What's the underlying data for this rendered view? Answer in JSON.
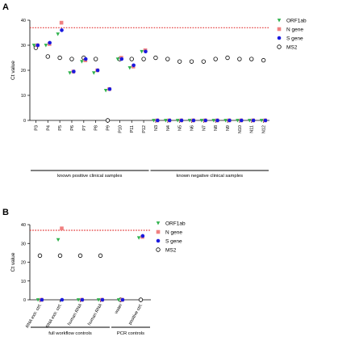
{
  "chart_data": [
    {
      "panel": "A",
      "type": "scatter",
      "ylabel": "Ct value",
      "ylim": [
        0,
        40
      ],
      "yticks": [
        "0",
        "10",
        "20",
        "30",
        "40"
      ],
      "threshold": 37,
      "categories": [
        "P3",
        "P4",
        "P5",
        "P6",
        "P7",
        "P8",
        "P9",
        "P10",
        "P11",
        "P12",
        "N3",
        "N4",
        "N5",
        "N6",
        "N7",
        "N8",
        "N9",
        "N10",
        "N11",
        "N12"
      ],
      "groups": [
        {
          "label": "known positive clinical samples",
          "from": 0,
          "to": 9
        },
        {
          "label": "known negative clinical samples",
          "from": 10,
          "to": 19
        }
      ],
      "series": [
        {
          "name": "ORF1ab",
          "color": "#2fb24c",
          "marker": "triangle-down",
          "values": [
            30,
            30,
            34.5,
            19,
            23.5,
            19,
            12,
            24.5,
            21,
            27.5,
            0,
            0,
            0,
            0,
            0,
            0,
            0,
            0,
            0,
            0
          ]
        },
        {
          "name": "N gene",
          "color": "#f08080",
          "marker": "square",
          "values": [
            30,
            30.5,
            39,
            19.5,
            24,
            20,
            12.5,
            25,
            21.5,
            28,
            0,
            0,
            0,
            0,
            0,
            0,
            0,
            0,
            0,
            0
          ]
        },
        {
          "name": "S gene",
          "color": "#1a1adf",
          "marker": "circle",
          "values": [
            30,
            31,
            36,
            19.5,
            24.5,
            20,
            12.5,
            24.5,
            22,
            27.5,
            0,
            0,
            0,
            0,
            0,
            0,
            0,
            0,
            0,
            0
          ]
        },
        {
          "name": "MS2",
          "color": "#000000",
          "marker": "open-circle",
          "values": [
            29,
            25.5,
            25,
            24.5,
            25,
            24.5,
            0,
            24.5,
            24.5,
            24.5,
            25,
            24.5,
            23.5,
            23.5,
            23.5,
            24.5,
            25,
            24.5,
            24.5,
            24
          ]
        }
      ]
    },
    {
      "panel": "B",
      "type": "scatter",
      "ylabel": "Ct value",
      "ylim": [
        0,
        40
      ],
      "yticks": [
        "0",
        "10",
        "20",
        "30",
        "40"
      ],
      "threshold": 37,
      "categories": [
        "RNA extr. ctrl.",
        "RNA extr. ctrl.",
        "human RNA",
        "human RNA",
        "water",
        "positive ctrl."
      ],
      "groups": [
        {
          "label": "full workflow controls",
          "from": 0,
          "to": 3
        },
        {
          "label": "PCR controls",
          "from": 4,
          "to": 5
        }
      ],
      "series": [
        {
          "name": "ORF1ab",
          "color": "#2fb24c",
          "marker": "triangle-down",
          "values": [
            0,
            32,
            0,
            0,
            0,
            33
          ]
        },
        {
          "name": "N gene",
          "color": "#f08080",
          "marker": "square",
          "values": [
            0,
            38,
            0,
            0,
            0,
            33.5
          ]
        },
        {
          "name": "S gene",
          "color": "#1a1adf",
          "marker": "circle",
          "values": [
            0,
            0,
            0,
            0,
            0,
            34
          ]
        },
        {
          "name": "MS2",
          "color": "#000000",
          "marker": "open-circle",
          "values": [
            23.5,
            23.5,
            23.5,
            23.5,
            0,
            0
          ]
        }
      ]
    }
  ]
}
